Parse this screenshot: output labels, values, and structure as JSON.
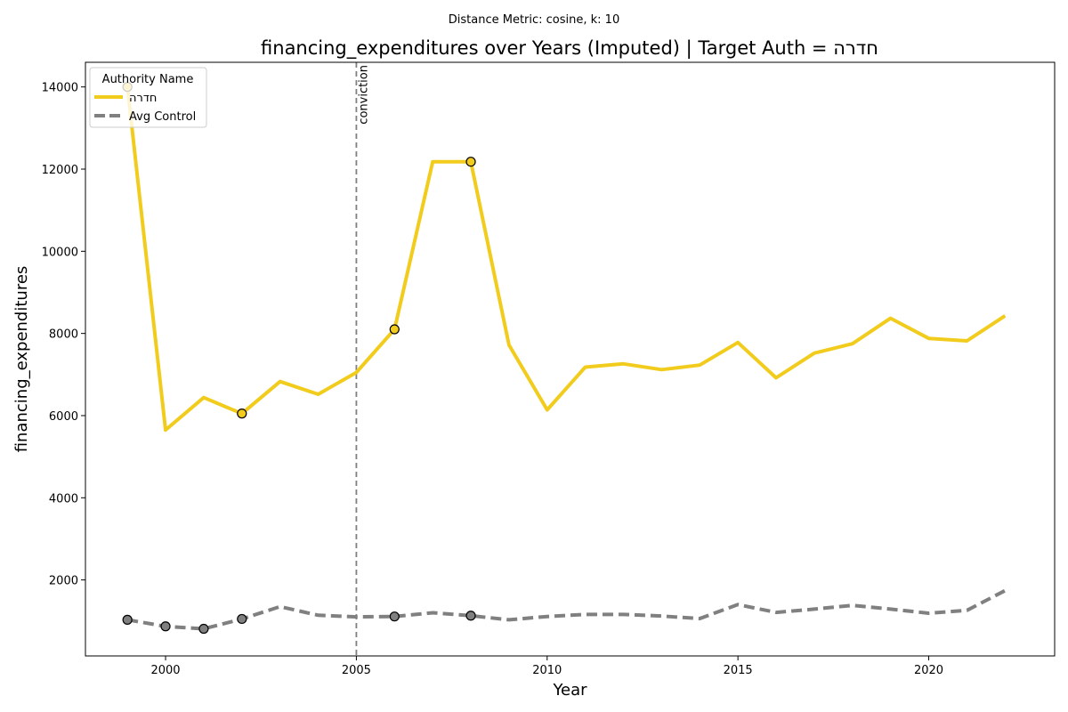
{
  "suptitle": "Distance Metric: cosine, k: 10",
  "chart_data": {
    "type": "line",
    "title": "financing_expenditures over Years (Imputed) | Target Auth = חדרה",
    "xlabel": "Year",
    "ylabel": "financing_expenditures",
    "xlim": [
      1997.9,
      2023.3
    ],
    "ylim": [
      150,
      14600
    ],
    "xticks": [
      2000,
      2005,
      2010,
      2015,
      2020
    ],
    "yticks": [
      2000,
      4000,
      6000,
      8000,
      10000,
      12000,
      14000
    ],
    "grid": false,
    "legend": {
      "title": "Authority Name",
      "placement": "top-left"
    },
    "x": [
      1999,
      2000,
      2001,
      2002,
      2003,
      2004,
      2005,
      2006,
      2007,
      2008,
      2009,
      2010,
      2011,
      2012,
      2013,
      2014,
      2015,
      2016,
      2017,
      2018,
      2019,
      2020,
      2021,
      2022
    ],
    "series": [
      {
        "name": "חדרה",
        "color": "#f2cc1d",
        "style": "solid",
        "values": [
          14000,
          5650,
          6440,
          6050,
          6830,
          6520,
          7050,
          8100,
          12180,
          12180,
          7720,
          6140,
          7180,
          7260,
          7120,
          7230,
          7780,
          6920,
          7520,
          7750,
          8370,
          7880,
          7820,
          8430
        ],
        "imputed_years": [
          1999,
          2002,
          2006,
          2008
        ]
      },
      {
        "name": "Avg Control",
        "color": "#808080",
        "style": "dashed",
        "values": [
          1030,
          870,
          810,
          1050,
          1350,
          1140,
          1100,
          1110,
          1200,
          1130,
          1030,
          1110,
          1160,
          1160,
          1120,
          1060,
          1400,
          1210,
          1290,
          1380,
          1290,
          1190,
          1260,
          1740
        ],
        "imputed_years": [
          1999,
          2000,
          2001,
          2002,
          2006,
          2008
        ]
      }
    ],
    "annotations": [
      {
        "type": "vline",
        "x": 2005,
        "label": "conviction",
        "color": "#808080"
      }
    ]
  }
}
